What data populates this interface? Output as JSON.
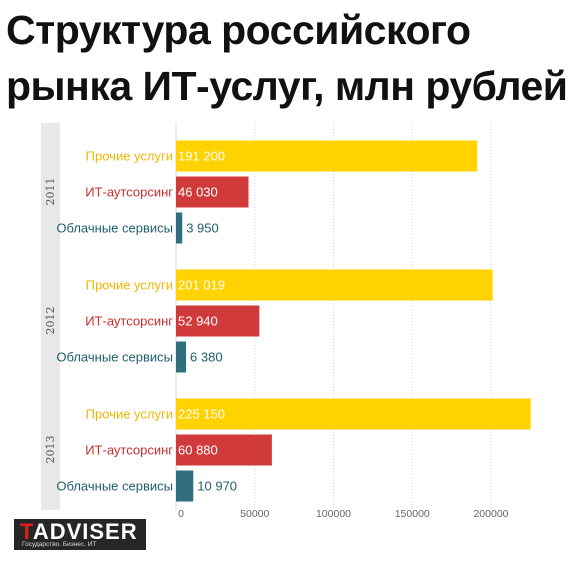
{
  "chart_data": {
    "type": "bar",
    "orientation": "horizontal",
    "title": "Структура российского рынка ИТ-услуг, млн рублей",
    "groups": [
      "2011",
      "2012",
      "2013"
    ],
    "categories": [
      "Прочие услуги",
      "ИТ-аутсорсинг",
      "Облачные сервисы"
    ],
    "colors": {
      "Прочие услуги": "#ffd200",
      "ИТ-аутсорсинг": "#d13a3a",
      "Облачные сервисы": "#2f6f80"
    },
    "label_colors": {
      "Прочие услуги": "#f2b600",
      "ИТ-аутсорсинг": "#c82e2e",
      "Облачные сервисы": "#1f5f6f"
    },
    "values": [
      [
        191200,
        46030,
        3950
      ],
      [
        201019,
        52940,
        6380
      ],
      [
        225150,
        60880,
        10970
      ]
    ],
    "value_labels": [
      [
        "191 200",
        "46 030",
        "3 950"
      ],
      [
        "201 019",
        "52 940",
        "6 380"
      ],
      [
        "225 150",
        "60 880",
        "10 970"
      ]
    ],
    "xlim": [
      0,
      240000
    ],
    "xticks": [
      0,
      50000,
      100000,
      150000,
      200000
    ],
    "xtick_labels": [
      "0",
      "50000",
      "100000",
      "150000",
      "200000"
    ],
    "grid": true,
    "legend": "none"
  },
  "logo": {
    "name_accent": "T",
    "name_rest": "ADVISER",
    "tagline": "Государство. Бизнес. ИТ"
  }
}
